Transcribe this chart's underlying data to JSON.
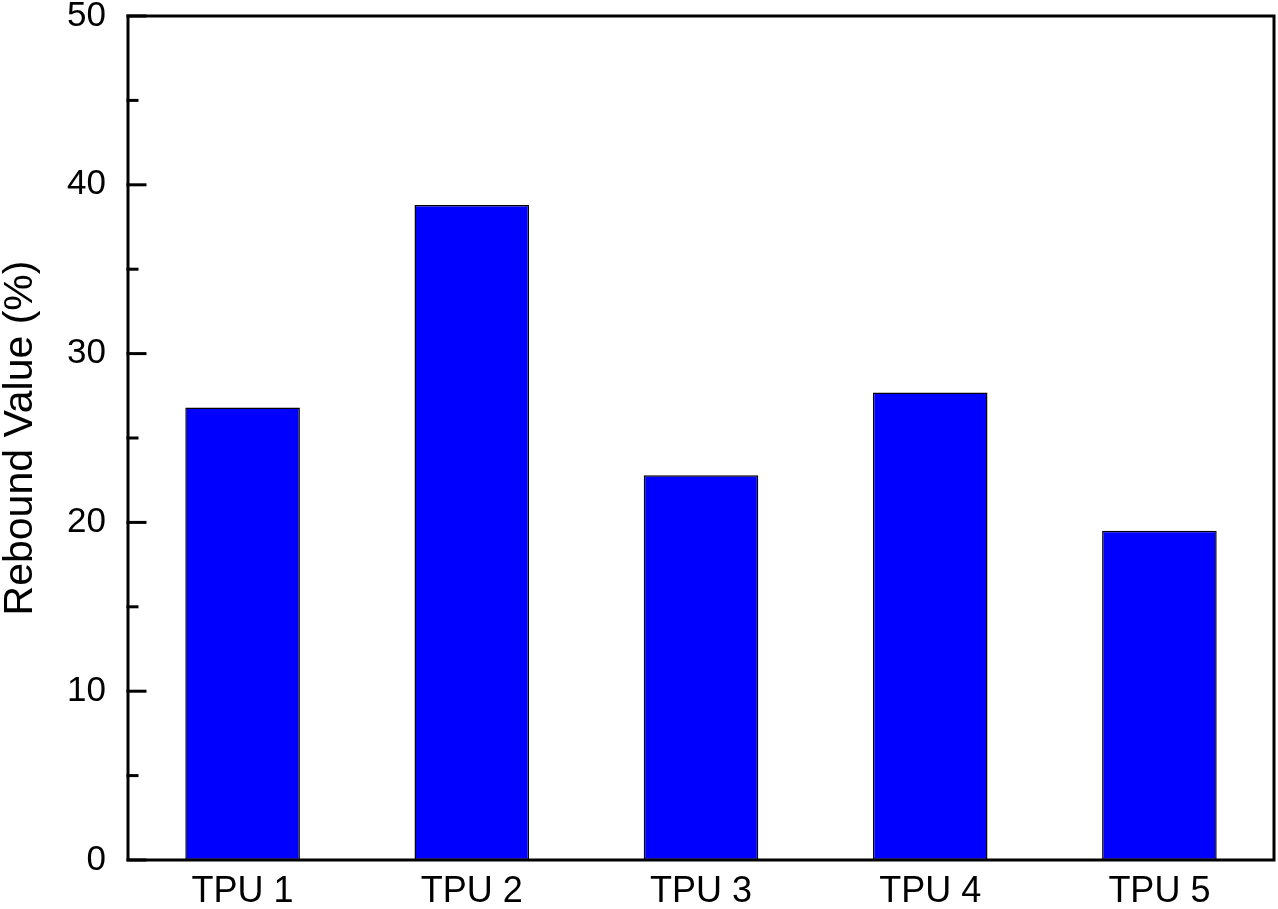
{
  "chart_data": {
    "type": "bar",
    "ylabel": "Rebound Value (%)",
    "categories": [
      "TPU 1",
      "TPU 2",
      "TPU 3",
      "TPU 4",
      "TPU 5"
    ],
    "values": [
      26.8,
      38.8,
      22.8,
      27.7,
      19.5
    ],
    "color": "#0000ff",
    "ylim": [
      0,
      50
    ],
    "yticks": [
      0,
      {
        "value": 5,
        "label": null
      },
      10,
      {
        "value": 15,
        "label": null
      },
      20,
      {
        "value": 25,
        "label": null
      },
      30,
      {
        "value": 35,
        "label": null
      },
      40,
      {
        "value": 45,
        "label": null
      },
      50
    ]
  }
}
